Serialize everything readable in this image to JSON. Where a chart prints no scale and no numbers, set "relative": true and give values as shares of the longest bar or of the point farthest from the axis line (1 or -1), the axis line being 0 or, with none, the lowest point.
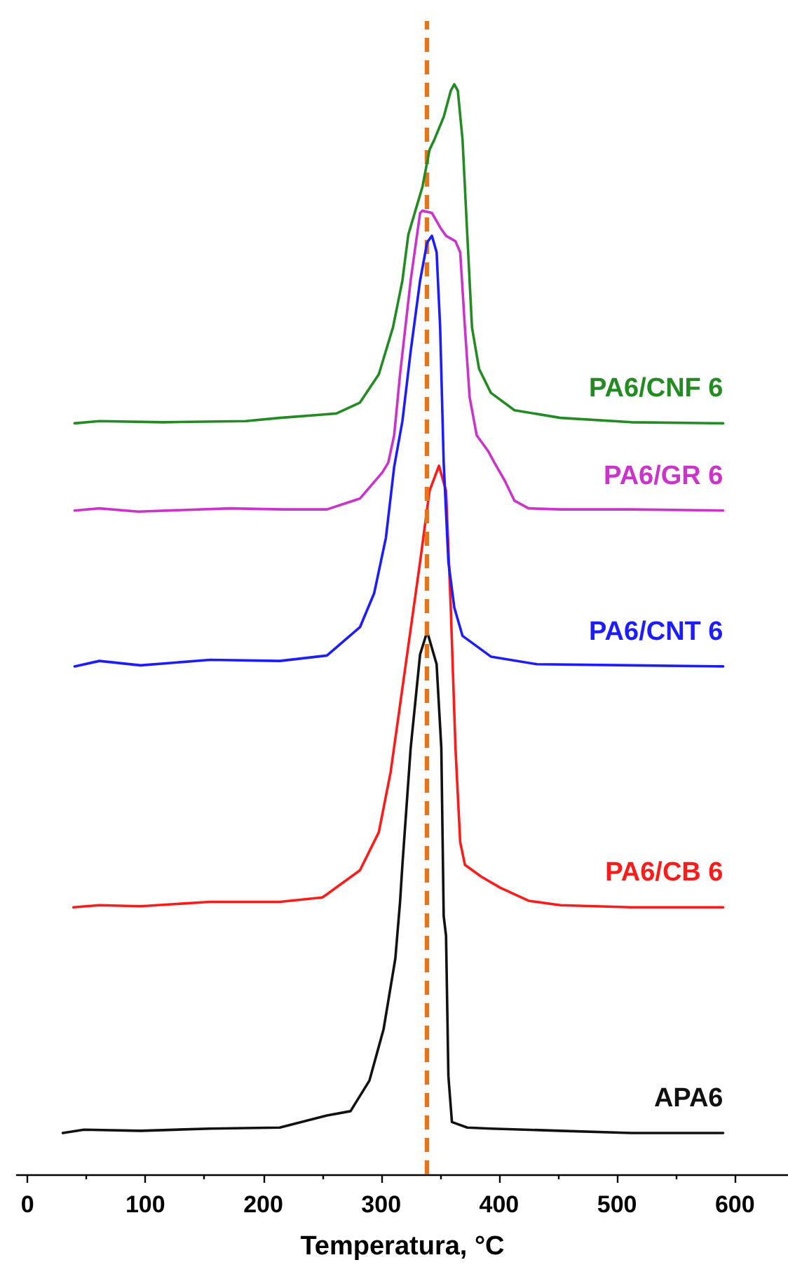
{
  "chart_data": {
    "type": "line",
    "xlabel": "Temperatura, °C",
    "relative": true,
    "xlim": [
      -9,
      645
    ],
    "xticks": [
      0,
      {
        "value": 50,
        "label": null
      },
      100,
      {
        "value": 150,
        "label": null
      },
      200,
      {
        "value": 250,
        "label": null
      },
      300,
      {
        "value": 350,
        "label": null
      },
      400,
      {
        "value": 450,
        "label": null
      },
      500,
      {
        "value": 550,
        "label": null
      },
      600
    ],
    "series": [
      {
        "name": "PA6/CNF 6",
        "color": "#228b22",
        "x": [
          40,
          61,
          115,
          185,
          214,
          250,
          262,
          282,
          298,
          310,
          318,
          323,
          329,
          335,
          341,
          345,
          353,
          359,
          362,
          365,
          369,
          373,
          377,
          383,
          393,
          413,
          452,
          512,
          590
        ],
        "values": [
          0.689,
          0.691,
          0.69,
          0.691,
          0.694,
          0.697,
          0.698,
          0.708,
          0.734,
          0.777,
          0.82,
          0.862,
          0.884,
          0.906,
          0.94,
          0.949,
          0.97,
          0.994,
          1,
          0.994,
          0.949,
          0.862,
          0.777,
          0.739,
          0.717,
          0.701,
          0.694,
          0.69,
          0.689
        ]
      },
      {
        "name": "PA6/GR 6",
        "color": "#cc33cc",
        "x": [
          40,
          61,
          94,
          172,
          217,
          254,
          282,
          301,
          306,
          311,
          316,
          325,
          333,
          335,
          343,
          351,
          355,
          363,
          367,
          371,
          375,
          381,
          391,
          396,
          405,
          413,
          425,
          452,
          512,
          590
        ],
        "values": [
          0.609,
          0.611,
          0.608,
          0.611,
          0.61,
          0.61,
          0.62,
          0.644,
          0.653,
          0.678,
          0.734,
          0.82,
          0.882,
          0.884,
          0.882,
          0.867,
          0.861,
          0.856,
          0.846,
          0.777,
          0.713,
          0.678,
          0.663,
          0.653,
          0.636,
          0.618,
          0.611,
          0.61,
          0.61,
          0.609
        ]
      },
      {
        "name": "PA6/CNT 6",
        "color": "#1c1cff",
        "x": [
          40,
          61,
          96,
          155,
          214,
          254,
          282,
          294,
          304,
          311,
          318,
          325,
          333,
          339,
          343,
          347,
          350,
          353,
          357,
          362,
          369,
          393,
          432,
          512,
          590
        ],
        "values": [
          0.466,
          0.471,
          0.467,
          0.472,
          0.471,
          0.476,
          0.502,
          0.533,
          0.584,
          0.649,
          0.691,
          0.755,
          0.82,
          0.855,
          0.861,
          0.846,
          0.777,
          0.653,
          0.562,
          0.52,
          0.494,
          0.475,
          0.468,
          0.467,
          0.466
        ]
      },
      {
        "name": "PA6/CB 6",
        "color": "#ff1a1a",
        "x": [
          39,
          61,
          96,
          155,
          214,
          250,
          254,
          282,
          298,
          308,
          322,
          333,
          341,
          349,
          355,
          359,
          363,
          367,
          371,
          385,
          401,
          425,
          452,
          512,
          590
        ],
        "values": [
          0.245,
          0.247,
          0.246,
          0.25,
          0.25,
          0.254,
          0.257,
          0.279,
          0.314,
          0.369,
          0.477,
          0.562,
          0.627,
          0.65,
          0.627,
          0.52,
          0.391,
          0.305,
          0.284,
          0.273,
          0.263,
          0.251,
          0.247,
          0.245,
          0.245
        ]
      },
      {
        "name": "APA6",
        "color": "#111111",
        "x": [
          30,
          48,
          96,
          155,
          214,
          254,
          274,
          290,
          302,
          312,
          316,
          318,
          325,
          333,
          339,
          347,
          351,
          353,
          355,
          357,
          360,
          373,
          393,
          452,
          512,
          590
        ],
        "values": [
          0.038,
          0.041,
          0.04,
          0.042,
          0.043,
          0.054,
          0.058,
          0.086,
          0.133,
          0.198,
          0.25,
          0.284,
          0.391,
          0.477,
          0.498,
          0.468,
          0.391,
          0.237,
          0.219,
          0.09,
          0.048,
          0.043,
          0.042,
          0.04,
          0.038,
          0.038
        ]
      }
    ],
    "ref_lines": [
      {
        "axis": "x",
        "value": 338,
        "color": "#e3761b",
        "line_style": "dashed"
      }
    ]
  }
}
